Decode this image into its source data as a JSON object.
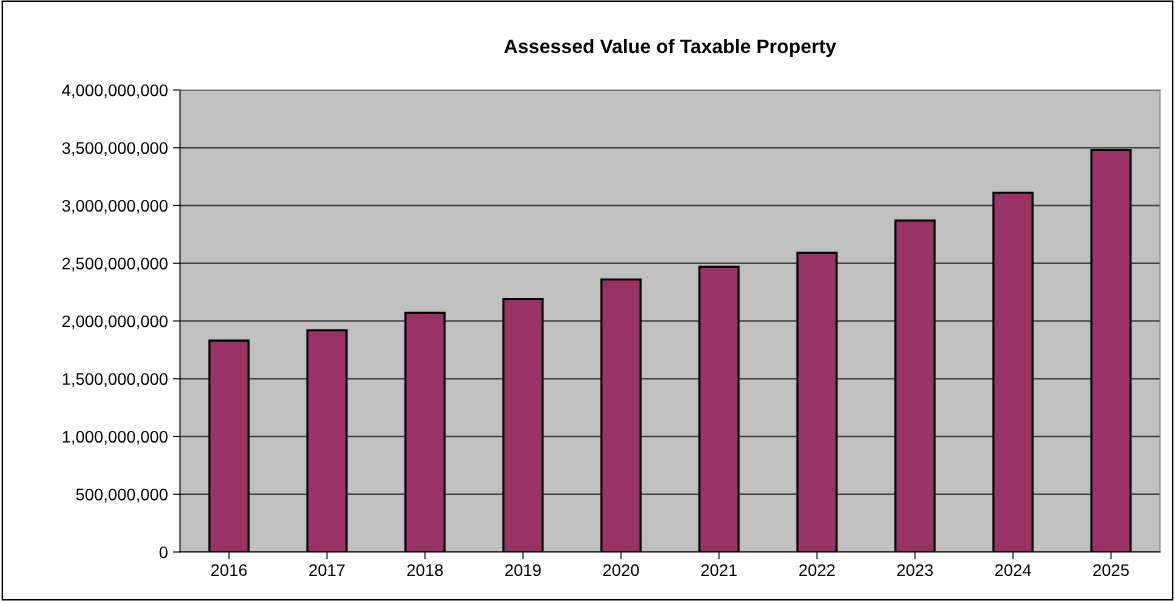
{
  "chart_data": {
    "type": "bar",
    "title": "Assessed Value of Taxable Property",
    "categories": [
      "2016",
      "2017",
      "2018",
      "2019",
      "2020",
      "2021",
      "2022",
      "2023",
      "2024",
      "2025"
    ],
    "values": [
      1830000000,
      1920000000,
      2070000000,
      2190000000,
      2360000000,
      2470000000,
      2590000000,
      2870000000,
      3110000000,
      3480000000
    ],
    "color": "#993366",
    "ylim": [
      0,
      4000000000
    ],
    "yticks": [
      0,
      {
        "value": 500000000,
        "label": "500,000,000"
      },
      {
        "value": 1000000000,
        "label": "1,000,000,000"
      },
      {
        "value": 1500000000,
        "label": "1,500,000,000"
      },
      {
        "value": 2000000000,
        "label": "2,000,000,000"
      },
      {
        "value": 2500000000,
        "label": "2,500,000,000"
      },
      {
        "value": 3000000000,
        "label": "3,000,000,000"
      },
      {
        "value": 3500000000,
        "label": "3,500,000,000"
      },
      {
        "value": 4000000000,
        "label": "4,000,000,000"
      }
    ],
    "grid": "y"
  }
}
